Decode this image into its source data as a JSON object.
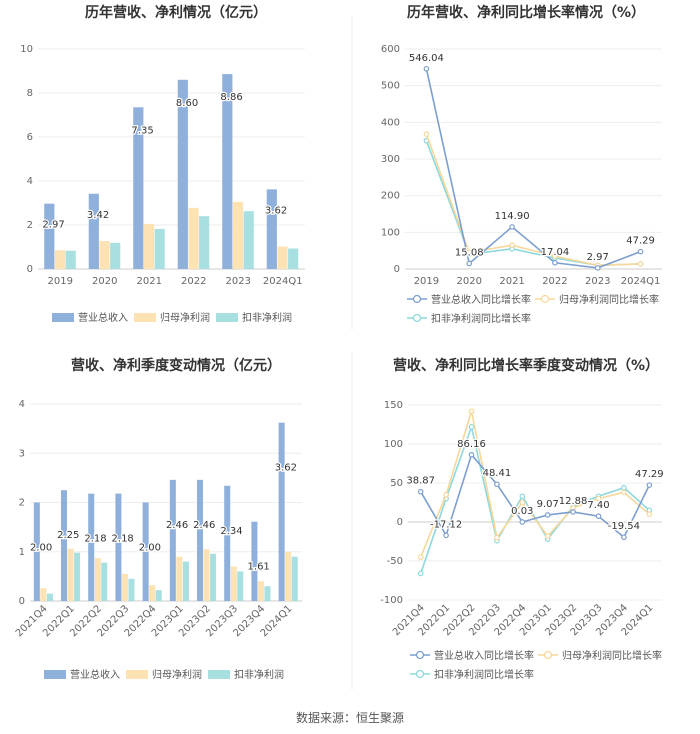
{
  "source": "数据来源：恒生聚源",
  "colors": {
    "revenue": "#8fb0db",
    "net_profit": "#fde2b4",
    "deducted_profit": "#a8dfe0",
    "rev_line": "#7c9fd0",
    "np_line": "#f7d79a",
    "dp_line": "#8ed8dc"
  },
  "chart_data": [
    {
      "type": "bar",
      "title": "历年营收、净利情况（亿元）",
      "categories": [
        "2019",
        "2020",
        "2021",
        "2022",
        "2023",
        "2024Q1"
      ],
      "ylim": [
        0,
        10
      ],
      "yticks": [
        0,
        2,
        4,
        6,
        8,
        10
      ],
      "series": [
        {
          "name": "营业总收入",
          "values": [
            2.97,
            3.42,
            7.35,
            8.6,
            8.86,
            3.62
          ],
          "labels": [
            "2.97",
            "3.42",
            "7.35",
            "8.60",
            "8.86",
            "3.62"
          ]
        },
        {
          "name": "归母净利润",
          "values": [
            0.85,
            1.27,
            2.05,
            2.78,
            3.05,
            1.02
          ]
        },
        {
          "name": "扣非净利润",
          "values": [
            0.83,
            1.19,
            1.82,
            2.4,
            2.63,
            0.93
          ]
        }
      ],
      "legend": "bottom"
    },
    {
      "type": "line",
      "title": "历年营收、净利同比增长率情况（%）",
      "categories": [
        "2019",
        "2020",
        "2021",
        "2022",
        "2023",
        "2024Q1"
      ],
      "ylim": [
        0,
        600
      ],
      "yticks": [
        0,
        100,
        200,
        300,
        400,
        500,
        600
      ],
      "series": [
        {
          "name": "营业总收入同比增长率",
          "values": [
            546.04,
            15.08,
            114.9,
            17.04,
            2.97,
            47.29
          ],
          "labels": [
            "546.04",
            "15.08",
            "114.90",
            "17.04",
            "2.97",
            "47.29"
          ]
        },
        {
          "name": "归母净利润同比增长率",
          "values": [
            368,
            45,
            65,
            35,
            10,
            14
          ]
        },
        {
          "name": "扣非净利润同比增长率",
          "values": [
            350,
            40,
            55,
            30,
            10,
            14
          ]
        }
      ],
      "legend": "bottom"
    },
    {
      "type": "bar",
      "title": "营收、净利季度变动情况（亿元）",
      "categories": [
        "2021Q4",
        "2022Q1",
        "2022Q2",
        "2022Q3",
        "2022Q4",
        "2023Q1",
        "2023Q2",
        "2023Q3",
        "2023Q4",
        "2024Q1"
      ],
      "ylim": [
        0,
        4
      ],
      "yticks": [
        0,
        1,
        2,
        3,
        4
      ],
      "series": [
        {
          "name": "营业总收入",
          "values": [
            2.0,
            2.25,
            2.18,
            2.18,
            2.0,
            2.46,
            2.46,
            2.34,
            1.61,
            3.62
          ],
          "labels": [
            "2.00",
            "2.25",
            "2.18",
            "2.18",
            "2.00",
            "2.46",
            "2.46",
            "2.34",
            "1.61",
            "3.62"
          ]
        },
        {
          "name": "归母净利润",
          "values": [
            0.26,
            1.06,
            0.87,
            0.55,
            0.32,
            0.9,
            1.05,
            0.7,
            0.4,
            1.0
          ]
        },
        {
          "name": "扣非净利润",
          "values": [
            0.15,
            0.98,
            0.78,
            0.45,
            0.22,
            0.8,
            0.96,
            0.6,
            0.3,
            0.9
          ]
        }
      ],
      "legend": "bottom"
    },
    {
      "type": "line",
      "title": "营收、净利同比增长率季度变动情况（%）",
      "categories": [
        "2021Q4",
        "2022Q1",
        "2022Q2",
        "2022Q3",
        "2022Q4",
        "2023Q1",
        "2023Q2",
        "2023Q3",
        "2023Q4",
        "2024Q1"
      ],
      "ylim": [
        -100,
        150
      ],
      "yticks": [
        -100,
        -50,
        0,
        50,
        100,
        150
      ],
      "series": [
        {
          "name": "营业总收入同比增长率",
          "values": [
            38.87,
            -17.12,
            86.16,
            48.41,
            0.03,
            9.07,
            12.88,
            7.4,
            -19.54,
            47.29
          ],
          "labels": [
            "38.87",
            "-17.12",
            "86.16",
            "48.41",
            "0.03",
            "9.07",
            "12.88",
            "7.40",
            "-19.54",
            "47.29"
          ]
        },
        {
          "name": "归母净利润同比增长率",
          "values": [
            -45,
            35,
            142,
            -20,
            25,
            -18,
            18,
            30,
            38,
            10
          ]
        },
        {
          "name": "扣非净利润同比增长率",
          "values": [
            -66,
            30,
            122,
            -24,
            33,
            -22,
            20,
            33,
            44,
            15
          ]
        }
      ],
      "legend": "bottom"
    }
  ]
}
